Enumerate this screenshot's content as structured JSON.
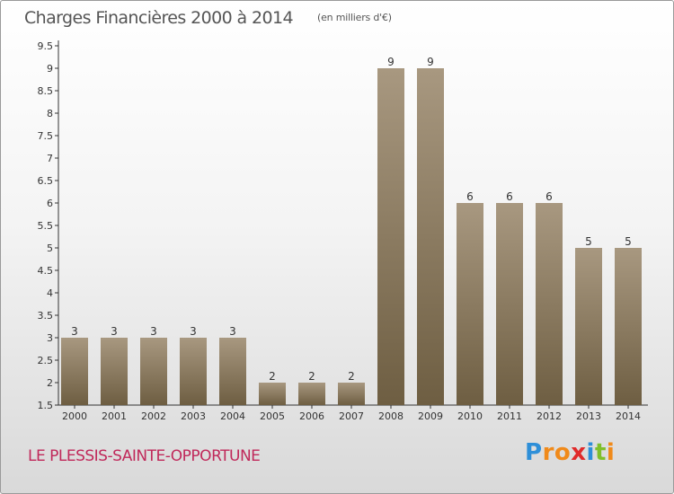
{
  "header": {
    "title": "Charges Financières 2000 à 2014",
    "subtitle": "(en milliers d'€)"
  },
  "footer": {
    "commune": "LE PLESSIS-SAINTE-OPPORTUNE",
    "logo_letters": [
      "P",
      "r",
      "o",
      "x",
      "i",
      "t",
      "i"
    ],
    "logo_colors": [
      "#2e8fd8",
      "#f08a1a",
      "#f08a1a",
      "#e02a2a",
      "#2e8fd8",
      "#7fbf2a",
      "#f08a1a"
    ]
  },
  "chart_data": {
    "type": "bar",
    "title": "Charges Financières 2000 à 2014",
    "subtitle": "(en milliers d'€)",
    "categories": [
      "2000",
      "2001",
      "2002",
      "2003",
      "2004",
      "2005",
      "2006",
      "2007",
      "2008",
      "2009",
      "2010",
      "2011",
      "2012",
      "2013",
      "2014"
    ],
    "values": [
      3,
      3,
      3,
      3,
      3,
      2,
      2,
      2,
      9,
      9,
      6,
      6,
      6,
      5,
      5
    ],
    "value_labels": [
      "3",
      "3",
      "3",
      "3",
      "3",
      "2",
      "2",
      "2",
      "9",
      "9",
      "6",
      "6",
      "6",
      "5",
      "5"
    ],
    "y_ticks": [
      "1.5",
      "2",
      "2.5",
      "3",
      "3.5",
      "4",
      "4.5",
      "5",
      "5.5",
      "6",
      "6.5",
      "7",
      "7.5",
      "8",
      "8.5",
      "9",
      "9.5"
    ],
    "ylim": [
      1.5,
      9.5
    ],
    "grid": false,
    "legend": "none",
    "colors": {
      "bar_top": "#a89880",
      "bar_bottom": "#6e5e42",
      "axis": "#333333",
      "text": "#333333"
    }
  }
}
